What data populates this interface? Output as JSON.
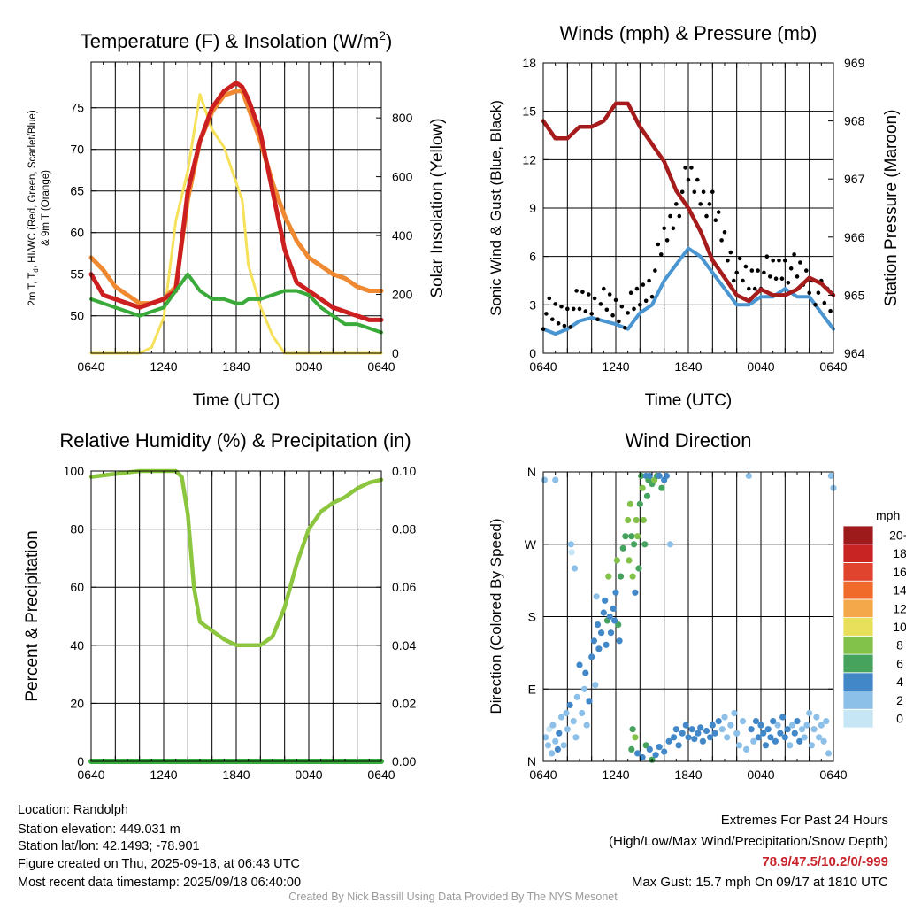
{
  "colors": {
    "red": "#cc1f1f",
    "orange": "#f08a32",
    "green": "#3aab3a",
    "yellow": "#f5e15a",
    "maroon": "#a61c1c",
    "blue": "#4a96d2",
    "black": "#000000",
    "rh_green": "#8cc63f"
  },
  "panels": {
    "temp": {
      "title": "Temperature (F) & Insolation (W/m",
      "title_sup": "2",
      "title_close": ")",
      "ylabel_line1": "2m T, T",
      "ylabel_sub": "d",
      "ylabel_rest": ", HI/WC (Red, Green, Scarlet/Blue)",
      "ylabel_line2": "& 9m T (Orange)",
      "y2label": "Solar Insolation (Yellow)",
      "xlabel": "Time (UTC)"
    },
    "wind": {
      "title": "Winds (mph) & Pressure (mb)",
      "ylabel": "Sonic Wind & Gust (Blue, Black)",
      "y2label": "Station Pressure (Maroon)",
      "xlabel": "Time (UTC)"
    },
    "rh": {
      "title": "Relative Humidity (%) & Precipitation (in)",
      "ylabel": "Percent & Precipitation"
    },
    "dir": {
      "title": "Wind Direction",
      "ylabel": "Direction (Colored By Speed)",
      "colorbar_title": "mph"
    }
  },
  "chart_data": [
    {
      "type": "line",
      "title": "Temperature (F) & Insolation (W/m2)",
      "xlabel": "Time (UTC)",
      "ylabel": "2m T, Td, HI/WC (Red, Green, Scarlet/Blue) & 9m T (Orange)",
      "y2label": "Solar Insolation (Yellow)",
      "x_ticks": [
        "0640",
        "1240",
        "1840",
        "0040",
        "0640"
      ],
      "y_ticks": [
        50,
        55,
        60,
        65,
        70,
        75
      ],
      "y2_ticks": [
        0,
        200,
        400,
        600,
        800
      ],
      "ylim": [
        45.5,
        80.5
      ],
      "y2lim": [
        0,
        990
      ],
      "x_hours": [
        0,
        1,
        2,
        3,
        4,
        5,
        6,
        7,
        8,
        9,
        10,
        11,
        12,
        12.5,
        13,
        14,
        15,
        16,
        17,
        18,
        19,
        20,
        21,
        22,
        23,
        24
      ],
      "series": [
        {
          "values": [
            55,
            52.5,
            52,
            51.5,
            51,
            51.5,
            52,
            53,
            65,
            71,
            75,
            77,
            78,
            77.5,
            76,
            72,
            65,
            58,
            54,
            53,
            52,
            51,
            50.5,
            50,
            49.5,
            49.5
          ]
        },
        {
          "values": [
            57,
            55.5,
            53.5,
            52.5,
            51.5,
            51.5,
            52,
            53.5,
            64,
            71,
            74.5,
            76.5,
            77,
            77,
            75,
            71,
            66,
            62,
            59,
            57,
            56,
            55,
            54.5,
            53.5,
            53,
            53
          ]
        },
        {
          "values": [
            52,
            51.5,
            51,
            50.5,
            50,
            50.5,
            51,
            53,
            55,
            53,
            52,
            52,
            51.5,
            51.5,
            52,
            52,
            52.5,
            53,
            53,
            52.5,
            51,
            50,
            49,
            49,
            48.5,
            48
          ]
        },
        {
          "values": [
            0,
            0,
            0,
            0,
            0,
            20,
            120,
            450,
            620,
            880,
            760,
            700,
            580,
            520,
            300,
            160,
            60,
            0,
            0,
            0,
            0,
            0,
            0,
            0,
            0,
            0
          ]
        }
      ]
    },
    {
      "type": "line",
      "title": "Winds (mph) & Pressure (mb)",
      "xlabel": "Time (UTC)",
      "ylabel": "Sonic Wind & Gust (Blue, Black)",
      "y2label": "Station Pressure (Maroon)",
      "x_ticks": [
        "0640",
        "1240",
        "1840",
        "0040",
        "0640"
      ],
      "y_ticks": [
        0,
        3,
        6,
        9,
        12,
        15,
        18
      ],
      "y2_ticks": [
        964,
        965,
        966,
        967,
        968,
        969
      ],
      "ylim": [
        0,
        18
      ],
      "y2lim": [
        964,
        969
      ],
      "x_hours": [
        0,
        1,
        2,
        3,
        4,
        5,
        6,
        7,
        8,
        9,
        10,
        11,
        12,
        13,
        14,
        15,
        16,
        17,
        18,
        19,
        20,
        21,
        22,
        23,
        24
      ],
      "series": [
        {
          "values": [
            1.5,
            1.2,
            1.5,
            2,
            2.2,
            2,
            1.8,
            1.5,
            2.5,
            3,
            4.5,
            5.5,
            6.5,
            6,
            5,
            4,
            3,
            3,
            3.5,
            3.5,
            4,
            3.5,
            3.5,
            2.5,
            1.5
          ]
        },
        {
          "values": [
            2.5,
            2.3,
            2.5,
            3,
            3.2,
            3,
            2.8,
            2.5,
            3.5,
            4.5,
            7,
            9,
            11,
            10,
            9,
            7,
            5,
            4.5,
            5,
            5,
            5.5,
            5,
            4.5,
            3.5,
            3
          ]
        },
        {
          "values": [
            968.0,
            967.7,
            967.7,
            967.9,
            967.9,
            968.0,
            968.3,
            968.3,
            967.9,
            967.6,
            967.3,
            966.8,
            966.5,
            966.1,
            965.6,
            965.3,
            965.0,
            964.9,
            965.1,
            965.0,
            965.0,
            965.1,
            965.3,
            965.2,
            965.0
          ]
        }
      ]
    },
    {
      "type": "line",
      "title": "Relative Humidity (%) & Precipitation (in)",
      "ylabel": "Percent & Precipitation",
      "x_ticks": [
        "0640",
        "1240",
        "1840",
        "0040",
        "0640"
      ],
      "y_ticks": [
        0,
        20,
        40,
        60,
        80,
        100
      ],
      "y2_ticks": [
        "0.00",
        "0.02",
        "0.04",
        "0.06",
        "0.08",
        "0.10"
      ],
      "ylim": [
        0,
        100
      ],
      "y2lim": [
        0,
        0.1
      ],
      "x_hours": [
        0,
        1,
        2,
        3,
        4,
        5,
        6,
        7,
        7.5,
        8,
        8.5,
        9,
        10,
        11,
        12,
        13,
        14,
        15,
        16,
        17,
        18,
        19,
        20,
        21,
        22,
        23,
        24
      ],
      "series": [
        {
          "values": [
            98,
            98.5,
            99,
            99.5,
            100,
            100,
            100,
            100,
            98,
            85,
            60,
            48,
            45,
            42,
            40,
            40,
            40,
            43,
            53,
            68,
            80,
            86,
            89,
            91,
            94,
            96,
            97
          ]
        },
        {
          "values": [
            0,
            0,
            0,
            0,
            0,
            0,
            0,
            0,
            0,
            0,
            0,
            0,
            0,
            0,
            0,
            0,
            0,
            0,
            0,
            0,
            0,
            0,
            0,
            0,
            0,
            0,
            0
          ]
        }
      ]
    },
    {
      "type": "scatter",
      "title": "Wind Direction",
      "ylabel": "Direction (Colored By Speed)",
      "x_ticks": [
        "0640",
        "1240",
        "1840",
        "0040",
        "0640"
      ],
      "y_ticks": [
        "N",
        "E",
        "S",
        "W",
        "N"
      ],
      "ylim": [
        0,
        360
      ],
      "colorbar": {
        "title": "mph",
        "labels": [
          "0",
          "2",
          "4",
          "6",
          "8",
          "10",
          "12",
          "14",
          "16",
          "18",
          "20+"
        ],
        "colors": [
          "#c6e6f6",
          "#8cc0e8",
          "#4288c8",
          "#46a35e",
          "#82c24a",
          "#e8e05a",
          "#f4a84a",
          "#f06a2a",
          "#e0442e",
          "#c82424",
          "#9e1b1b"
        ]
      },
      "points": [
        [
          0.1,
          350,
          1
        ],
        [
          0.2,
          30,
          1
        ],
        [
          0.4,
          20,
          1
        ],
        [
          0.5,
          40,
          0
        ],
        [
          0.7,
          10,
          1
        ],
        [
          0.8,
          45,
          1
        ],
        [
          1.0,
          25,
          1
        ],
        [
          1.2,
          15,
          2
        ],
        [
          1.3,
          35,
          2
        ],
        [
          1.5,
          55,
          1
        ],
        [
          1.7,
          20,
          1
        ],
        [
          1.9,
          60,
          1
        ],
        [
          2.0,
          40,
          1
        ],
        [
          2.2,
          70,
          2
        ],
        [
          2.3,
          270,
          1
        ],
        [
          2.35,
          260,
          0
        ],
        [
          2.5,
          50,
          1
        ],
        [
          2.7,
          30,
          1
        ],
        [
          2.8,
          80,
          1
        ],
        [
          3.0,
          120,
          2
        ],
        [
          3.2,
          60,
          1
        ],
        [
          3.4,
          90,
          1
        ],
        [
          3.5,
          110,
          2
        ],
        [
          3.6,
          45,
          1
        ],
        [
          3.8,
          75,
          2
        ],
        [
          4.0,
          130,
          2
        ],
        [
          4.2,
          150,
          2
        ],
        [
          4.3,
          95,
          1
        ],
        [
          4.5,
          170,
          2
        ],
        [
          4.6,
          140,
          2
        ],
        [
          4.8,
          160,
          2
        ],
        [
          5.0,
          185,
          2
        ],
        [
          5.1,
          200,
          2
        ],
        [
          5.2,
          145,
          2
        ],
        [
          5.3,
          175,
          3
        ],
        [
          5.4,
          230,
          4
        ],
        [
          5.5,
          180,
          2
        ],
        [
          5.6,
          160,
          2
        ],
        [
          5.8,
          190,
          2
        ],
        [
          6.0,
          210,
          2
        ],
        [
          6.1,
          250,
          4
        ],
        [
          6.2,
          170,
          3
        ],
        [
          6.3,
          150,
          2
        ],
        [
          6.4,
          230,
          3
        ],
        [
          6.6,
          265,
          3
        ],
        [
          6.8,
          280,
          3
        ],
        [
          7.0,
          300,
          4
        ],
        [
          7.1,
          250,
          4
        ],
        [
          7.2,
          320,
          4
        ],
        [
          7.3,
          280,
          3
        ],
        [
          7.4,
          230,
          4
        ],
        [
          7.5,
          270,
          3
        ],
        [
          7.6,
          210,
          2
        ],
        [
          7.7,
          300,
          4
        ],
        [
          7.8,
          280,
          4
        ],
        [
          7.9,
          240,
          3
        ],
        [
          8.0,
          320,
          3
        ],
        [
          8.1,
          355,
          3
        ],
        [
          8.2,
          340,
          4
        ],
        [
          8.3,
          300,
          4
        ],
        [
          8.4,
          270,
          3
        ],
        [
          8.5,
          355,
          2
        ],
        [
          8.6,
          330,
          3
        ],
        [
          8.7,
          350,
          3
        ],
        [
          8.8,
          355,
          2
        ],
        [
          9.0,
          345,
          3
        ],
        [
          9.2,
          350,
          4
        ],
        [
          9.4,
          355,
          3
        ],
        [
          9.6,
          355,
          2
        ],
        [
          9.8,
          340,
          3
        ],
        [
          10.0,
          350,
          2
        ],
        [
          10.2,
          355,
          2
        ],
        [
          10.5,
          270,
          1
        ],
        [
          7.4,
          40,
          3
        ],
        [
          7.6,
          30,
          4
        ],
        [
          7.3,
          15,
          3
        ],
        [
          7.8,
          10,
          2
        ],
        [
          8.2,
          5,
          2
        ],
        [
          8.5,
          20,
          3
        ],
        [
          8.8,
          15,
          2
        ],
        [
          9.0,
          2,
          3
        ],
        [
          9.3,
          8,
          2
        ],
        [
          9.6,
          18,
          2
        ],
        [
          10.0,
          12,
          2
        ],
        [
          10.4,
          25,
          2
        ],
        [
          10.8,
          30,
          2
        ],
        [
          11.0,
          40,
          2
        ],
        [
          11.2,
          20,
          2
        ],
        [
          11.5,
          35,
          2
        ],
        [
          11.8,
          45,
          2
        ],
        [
          12.0,
          30,
          2
        ],
        [
          12.3,
          40,
          2
        ],
        [
          12.5,
          28,
          2
        ],
        [
          12.8,
          35,
          2
        ],
        [
          13.0,
          42,
          2
        ],
        [
          13.2,
          25,
          2
        ],
        [
          13.5,
          38,
          2
        ],
        [
          13.8,
          30,
          2
        ],
        [
          14.0,
          45,
          2
        ],
        [
          14.2,
          35,
          2
        ],
        [
          14.5,
          50,
          2
        ],
        [
          14.8,
          40,
          1
        ],
        [
          15.0,
          55,
          1
        ],
        [
          15.2,
          30,
          1
        ],
        [
          15.5,
          45,
          1
        ],
        [
          15.8,
          60,
          1
        ],
        [
          16.0,
          35,
          1
        ],
        [
          16.2,
          20,
          1
        ],
        [
          16.5,
          50,
          1
        ],
        [
          16.8,
          15,
          1
        ],
        [
          17.0,
          355,
          1
        ],
        [
          17.2,
          40,
          2
        ],
        [
          17.4,
          25,
          1
        ],
        [
          17.6,
          50,
          2
        ],
        [
          17.8,
          30,
          2
        ],
        [
          18.0,
          45,
          2
        ],
        [
          18.2,
          35,
          2
        ],
        [
          18.4,
          20,
          2
        ],
        [
          18.6,
          40,
          2
        ],
        [
          18.8,
          30,
          2
        ],
        [
          19.0,
          50,
          2
        ],
        [
          19.2,
          25,
          2
        ],
        [
          19.4,
          45,
          1
        ],
        [
          19.6,
          35,
          2
        ],
        [
          19.8,
          55,
          2
        ],
        [
          20.0,
          30,
          2
        ],
        [
          20.2,
          40,
          2
        ],
        [
          20.4,
          20,
          1
        ],
        [
          20.6,
          45,
          1
        ],
        [
          20.8,
          35,
          2
        ],
        [
          21.0,
          50,
          2
        ],
        [
          21.2,
          25,
          2
        ],
        [
          21.4,
          40,
          1
        ],
        [
          21.6,
          30,
          1
        ],
        [
          21.8,
          45,
          1
        ],
        [
          22.0,
          60,
          1
        ],
        [
          22.2,
          20,
          1
        ],
        [
          22.4,
          40,
          1
        ],
        [
          22.6,
          55,
          1
        ],
        [
          22.8,
          30,
          1
        ],
        [
          23.0,
          45,
          1
        ],
        [
          23.2,
          25,
          1
        ],
        [
          23.4,
          50,
          1
        ],
        [
          23.6,
          10,
          1
        ],
        [
          23.8,
          355,
          1
        ],
        [
          24.0,
          340,
          1
        ],
        [
          1.0,
          350,
          1
        ],
        [
          2.6,
          240,
          1
        ],
        [
          4.4,
          205,
          1
        ],
        [
          5.9,
          175,
          2
        ]
      ]
    }
  ],
  "info": {
    "location": "Location: Randolph",
    "elevation": "Station elevation: 449.031 m",
    "latlon": "Station lat/lon: 42.1493; -78.901",
    "created": "Figure created on Thu, 2025-09-18, at 06:43 UTC",
    "recent": "Most recent data timestamp: 2025/09/18 06:40:00"
  },
  "extremes": {
    "title": "Extremes For Past 24 Hours",
    "subtitle": "(High/Low/Max Wind/Precipitation/Snow Depth)",
    "values": "78.9/47.5/10.2/0/-999",
    "gust": "Max Gust: 15.7 mph On 09/17 at 1810 UTC"
  },
  "footer": "Created By Nick Bassill Using Data Provided By The NYS Mesonet"
}
